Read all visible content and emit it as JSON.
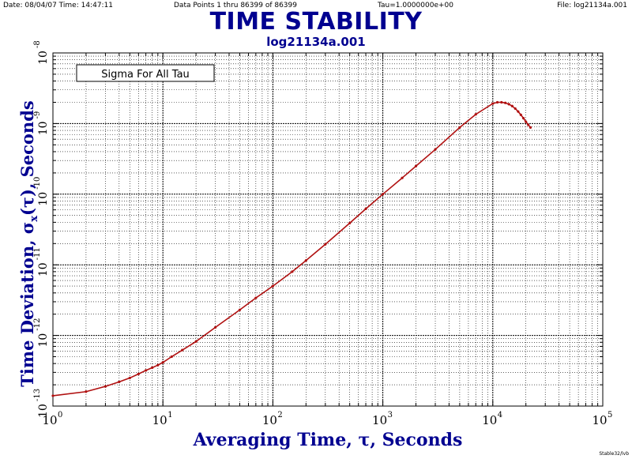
{
  "header": {
    "date": "Date: 08/04/07  Time: 14:47:11",
    "points": "Data Points 1 thru 86399 of 86399",
    "tau": "Tau=1.0000000e+00",
    "file": "File: log21134a.001"
  },
  "credit": "Stable32/lvb",
  "colors": {
    "title": "#000090",
    "curve": "#b01010",
    "grid": "#000000"
  },
  "chart_data": {
    "type": "line",
    "title": "TIME STABILITY",
    "subtitle": "log21134a.001",
    "xlabel": "Averaging Time, τ, Seconds",
    "ylabel_prefix": "Time Deviation, σ",
    "ylabel_sub": "x",
    "ylabel_suffix": "(τ),  Seconds",
    "annotation": "Sigma For All Tau",
    "xscale": "log",
    "yscale": "log",
    "xlim": [
      1,
      100000
    ],
    "ylim": [
      1e-13,
      1e-08
    ],
    "grid": true,
    "x_ticks": [
      {
        "base": "10",
        "exp": "0"
      },
      {
        "base": "10",
        "exp": "1"
      },
      {
        "base": "10",
        "exp": "2"
      },
      {
        "base": "10",
        "exp": "3"
      },
      {
        "base": "10",
        "exp": "4"
      },
      {
        "base": "10",
        "exp": "5"
      }
    ],
    "y_ticks": [
      {
        "base": "10",
        "exp": "-13"
      },
      {
        "base": "10",
        "exp": "-12"
      },
      {
        "base": "10",
        "exp": "-11"
      },
      {
        "base": "10",
        "exp": "-10"
      },
      {
        "base": "10",
        "exp": "-9"
      },
      {
        "base": "10",
        "exp": "-8"
      }
    ],
    "series": [
      {
        "x": [
          1,
          2,
          3,
          4,
          5,
          6,
          7,
          8,
          9,
          10,
          12,
          15,
          20,
          30,
          50,
          70,
          100,
          150,
          200,
          300,
          500,
          700,
          1000,
          1500,
          2000,
          3000,
          5000,
          7000,
          10000,
          11000,
          12000,
          13000,
          14000,
          15000,
          16000,
          17000,
          18000,
          19000,
          20000,
          21000,
          22000
        ],
        "y": [
          1.4e-13,
          1.6e-13,
          1.9e-13,
          2.2e-13,
          2.5e-13,
          2.85e-13,
          3.2e-13,
          3.5e-13,
          3.8e-13,
          4.15e-13,
          5e-13,
          6.2e-13,
          8.2e-13,
          1.3e-12,
          2.3e-12,
          3.4e-12,
          5e-12,
          8e-12,
          1.15e-11,
          1.95e-11,
          3.9e-11,
          6.2e-11,
          1e-10,
          1.7e-10,
          2.5e-10,
          4.3e-10,
          8.8e-10,
          1.35e-09,
          1.92e-09,
          2e-09,
          2e-09,
          1.96e-09,
          1.88e-09,
          1.77e-09,
          1.63e-09,
          1.48e-09,
          1.33e-09,
          1.19e-09,
          1.06e-09,
          9.6e-10,
          8.8e-10
        ]
      }
    ]
  }
}
